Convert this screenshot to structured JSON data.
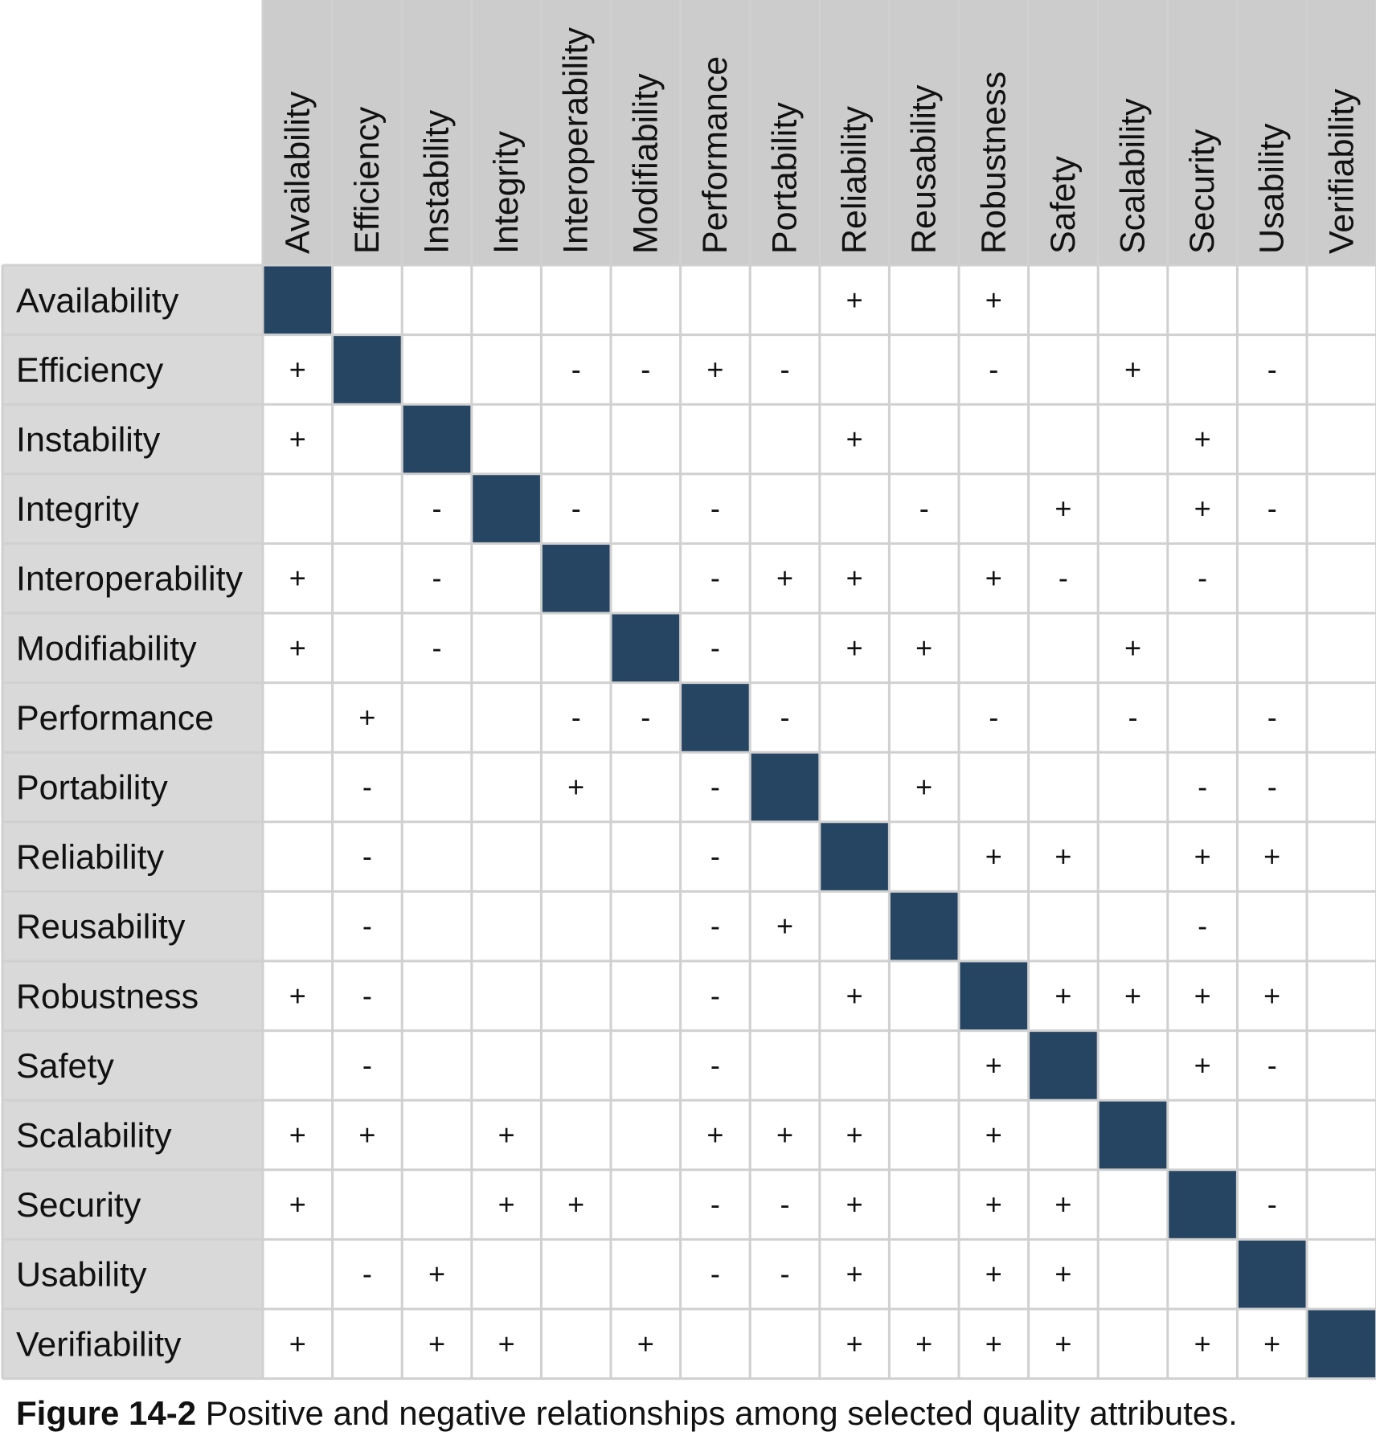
{
  "colors": {
    "header_bg": "#cccccc",
    "row_header_bg": "#d9d9d9",
    "diagonal_fill": "#264563",
    "grid_line": "#d0d0d0",
    "cell_bg": "#ffffff"
  },
  "chart_data": {
    "type": "table",
    "title": "Positive and negative relationships among selected quality attributes.",
    "attributes": [
      "Availability",
      "Efficiency",
      "Instability",
      "Integrity",
      "Interoperability",
      "Modifiability",
      "Performance",
      "Portability",
      "Reliability",
      "Reusability",
      "Robustness",
      "Safety",
      "Scalability",
      "Security",
      "Usability",
      "Verifiability"
    ],
    "matrix": [
      [
        "",
        "",
        "",
        "",
        "",
        "",
        "",
        "",
        "+",
        "",
        "+",
        "",
        "",
        "",
        "",
        ""
      ],
      [
        "+",
        "",
        "",
        "",
        "-",
        "-",
        "+",
        "-",
        "",
        "",
        "-",
        "",
        "+",
        "",
        "-",
        ""
      ],
      [
        "+",
        "",
        "",
        "",
        "",
        "",
        "",
        "",
        "+",
        "",
        "",
        "",
        "",
        "+",
        "",
        ""
      ],
      [
        "",
        "",
        "-",
        "",
        "-",
        "",
        "-",
        "",
        "",
        "-",
        "",
        "+",
        "",
        "+",
        "-",
        ""
      ],
      [
        "+",
        "",
        "-",
        "",
        "",
        "",
        "-",
        "+",
        "+",
        "",
        "+",
        "-",
        "",
        "-",
        "",
        ""
      ],
      [
        "+",
        "",
        "-",
        "",
        "",
        "",
        "-",
        "",
        "+",
        "+",
        "",
        "",
        "+",
        "",
        "",
        ""
      ],
      [
        "",
        "+",
        "",
        "",
        "-",
        "-",
        "",
        "-",
        "",
        "",
        "-",
        "",
        "-",
        "",
        "-",
        ""
      ],
      [
        "",
        "-",
        "",
        "",
        "+",
        "",
        "-",
        "",
        "",
        "+",
        "",
        "",
        "",
        "-",
        "-",
        ""
      ],
      [
        "",
        "-",
        "",
        "",
        "",
        "",
        "-",
        "",
        "",
        "",
        "+",
        "+",
        "",
        "+",
        "+",
        ""
      ],
      [
        "",
        "-",
        "",
        "",
        "",
        "",
        "-",
        "+",
        "",
        "",
        "",
        "",
        "",
        "-",
        "",
        ""
      ],
      [
        "+",
        "-",
        "",
        "",
        "",
        "",
        "-",
        "",
        "+",
        "",
        "",
        "+",
        "+",
        "+",
        "+",
        ""
      ],
      [
        "",
        "-",
        "",
        "",
        "",
        "",
        "-",
        "",
        "",
        "",
        "+",
        "",
        "",
        "+",
        "-",
        ""
      ],
      [
        "+",
        "+",
        "",
        "+",
        "",
        "",
        "+",
        "+",
        "+",
        "",
        "+",
        "",
        "",
        "",
        "",
        ""
      ],
      [
        "+",
        "",
        "",
        "+",
        "+",
        "",
        "-",
        "-",
        "+",
        "",
        "+",
        "+",
        "",
        "",
        "-",
        ""
      ],
      [
        "",
        "-",
        "+",
        "",
        "",
        "",
        "-",
        "-",
        "+",
        "",
        "+",
        "+",
        "",
        "",
        "",
        ""
      ],
      [
        "+",
        "",
        "+",
        "+",
        "",
        "+",
        "",
        "",
        "+",
        "+",
        "+",
        "+",
        "",
        "+",
        "+",
        ""
      ]
    ]
  },
  "caption": {
    "label": "Figure 14-2",
    "text": "Positive and negative relationships among selected quality attributes."
  }
}
